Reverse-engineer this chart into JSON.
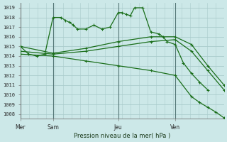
{
  "background_color": "#cce8e8",
  "grid_color": "#aacccc",
  "line_color": "#1a6e1a",
  "title": "Pression niveau de la mer( hPa )",
  "ylabel_values": [
    1008,
    1009,
    1010,
    1011,
    1012,
    1013,
    1014,
    1015,
    1016,
    1017,
    1018,
    1019
  ],
  "day_labels": [
    "Mer",
    "Sam",
    "Jeu",
    "Ven"
  ],
  "day_positions": [
    0,
    4,
    12,
    19
  ],
  "vlines": [
    0,
    4,
    12,
    19
  ],
  "series1_x": [
    0,
    1,
    2,
    3,
    4,
    5,
    5.5,
    6,
    6.5,
    7,
    8,
    9,
    10,
    11,
    12,
    12.5,
    13,
    13.5,
    14,
    15,
    16,
    17,
    17.5,
    18,
    19,
    20,
    21,
    22,
    23
  ],
  "series1_y": [
    1015,
    1014.2,
    1014.0,
    1014.2,
    1018,
    1018,
    1017.7,
    1017.5,
    1017.2,
    1016.8,
    1016.8,
    1017.2,
    1016.8,
    1017.0,
    1018.5,
    1018.5,
    1018.3,
    1018.2,
    1019.0,
    1019.0,
    1016.5,
    1016.3,
    1016.0,
    1015.5,
    1015.2,
    1013.3,
    1012.2,
    1011.3,
    1010.5
  ],
  "series2_x": [
    0,
    4,
    8,
    12,
    16,
    19,
    21,
    23,
    25
  ],
  "series2_y": [
    1015.0,
    1014.3,
    1014.8,
    1015.5,
    1016.0,
    1016.0,
    1015.2,
    1013.0,
    1011.0
  ],
  "series3_x": [
    0,
    4,
    8,
    12,
    16,
    19,
    21,
    23,
    25
  ],
  "series3_y": [
    1014.5,
    1014.2,
    1014.5,
    1015.0,
    1015.5,
    1015.7,
    1014.5,
    1012.5,
    1010.5
  ],
  "series4_x": [
    0,
    4,
    8,
    12,
    16,
    19,
    21,
    22,
    23,
    24,
    25
  ],
  "series4_y": [
    1014.2,
    1014.0,
    1013.5,
    1013.0,
    1012.5,
    1012.0,
    1009.8,
    1009.2,
    1008.7,
    1008.2,
    1007.6
  ],
  "xmin": 0,
  "xmax": 25,
  "ymin": 1007.5,
  "ymax": 1019.5
}
